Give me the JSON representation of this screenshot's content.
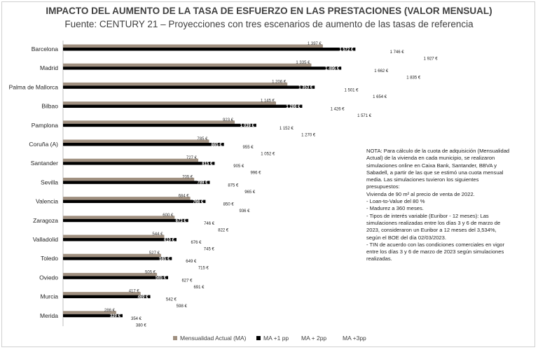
{
  "chart_data": {
    "type": "bar",
    "orientation": "horizontal",
    "title": "IMPACTO DEL AUMENTO DE LA TASA DE ESFUERZO EN LAS PRESTACIONES (VALOR MENSUAL)",
    "subtitle": "Fuente: CENTURY 21 – Proyecciones con tres escenarios de aumento de las tasas de referencia",
    "categories": [
      "Barcelona",
      "Madrid",
      "Palma de Mallorca",
      "Bilbao",
      "Pamplona",
      "Coruña (A)",
      "Santander",
      "Sevilla",
      "Valencia",
      "Zaragoza",
      "Valladolid",
      "Toledo",
      "Oviedo",
      "Murcia",
      "Merida"
    ],
    "series": [
      {
        "name": "Mensualidad Actual (MA)",
        "color": "#a09080",
        "values": [
          1397,
          1335,
          1206,
          1145,
          923,
          785,
          727,
          705,
          684,
          600,
          544,
          527,
          505,
          417,
          286
        ],
        "labels": [
          "1 397 €",
          "1 335 €",
          "1 206 €",
          "1 145 €",
          "923 €",
          "785 €",
          "727 €",
          "705 €",
          "684 €",
          "600 €",
          "544 €",
          "527 €",
          "505 €",
          "417 €",
          "286 €"
        ]
      },
      {
        "name": "MA +1 pp",
        "color": "#000000",
        "values": [
          1572,
          1496,
          1353,
          1286,
          1039,
          865,
          815,
          789,
          766,
          673,
          610,
          585,
          565,
          469,
          320
        ],
        "labels": [
          "1 572 €",
          "1 496 €",
          "1 353 €",
          "1 286 €",
          "1 039 €",
          "865 €",
          "815 €",
          "789 €",
          "766 €",
          "673 €",
          "610 €",
          "585 €",
          "565 €",
          "469 €",
          "320 €"
        ]
      },
      {
        "name": "MA + 2pp",
        "color": "#ffffff",
        "values": [
          1746,
          1662,
          1501,
          1426,
          1152,
          955,
          905,
          875,
          850,
          746,
          676,
          649,
          627,
          542,
          354
        ],
        "labels": [
          "1 746 €",
          "1 662 €",
          "1 501 €",
          "1 426 €",
          "1 152 €",
          "955 €",
          "905 €",
          "875 €",
          "850 €",
          "746 €",
          "676 €",
          "649 €",
          "627 €",
          "542 €",
          "354 €"
        ]
      },
      {
        "name": "MA +3pp",
        "color": "#ffffff",
        "values": [
          1927,
          1835,
          1654,
          1571,
          1270,
          1052,
          996,
          965,
          936,
          822,
          745,
          715,
          691,
          598,
          380
        ],
        "labels": [
          "1 927 €",
          "1 835 €",
          "1 654 €",
          "1 571 €",
          "1 270 €",
          "1 052 €",
          "996 €",
          "965 €",
          "936 €",
          "822 €",
          "745 €",
          "715 €",
          "691 €",
          "598 €",
          "380 €"
        ]
      }
    ],
    "xlim": [
      0,
      2000
    ],
    "grid": false,
    "legend": "bottom"
  },
  "note": [
    "NOTA: Para cálculo de la cuota de adquisición (Mensualidad Actual) de la vivienda en cada municipio, se realizaron simulaciones online en Caixa Bank, Santander, BBVA y Sabadell, a partir de las que se estimó una cuota mensual media. Las simulaciones tuvieron los siguientes presupuestos:",
    "Vivienda de 90 m² al precio de venta de 2022.",
    "- Loan-to-Value del 80 %",
    "- Madurez a 360 meses.",
    "- Tipos de interés variable (Euribor - 12 meses): Las simulaciones realizadas entre los días 3 y 6 de marzo de 2023, consideraron un Euribor a 12 meses del 3,534%, según el BOE del día 02/03/2023.",
    "- TIN de acuerdo con las condiciones comerciales en vigor entre los días 3 y 6 de marzo de 2023 según simulaciones realizadas."
  ]
}
